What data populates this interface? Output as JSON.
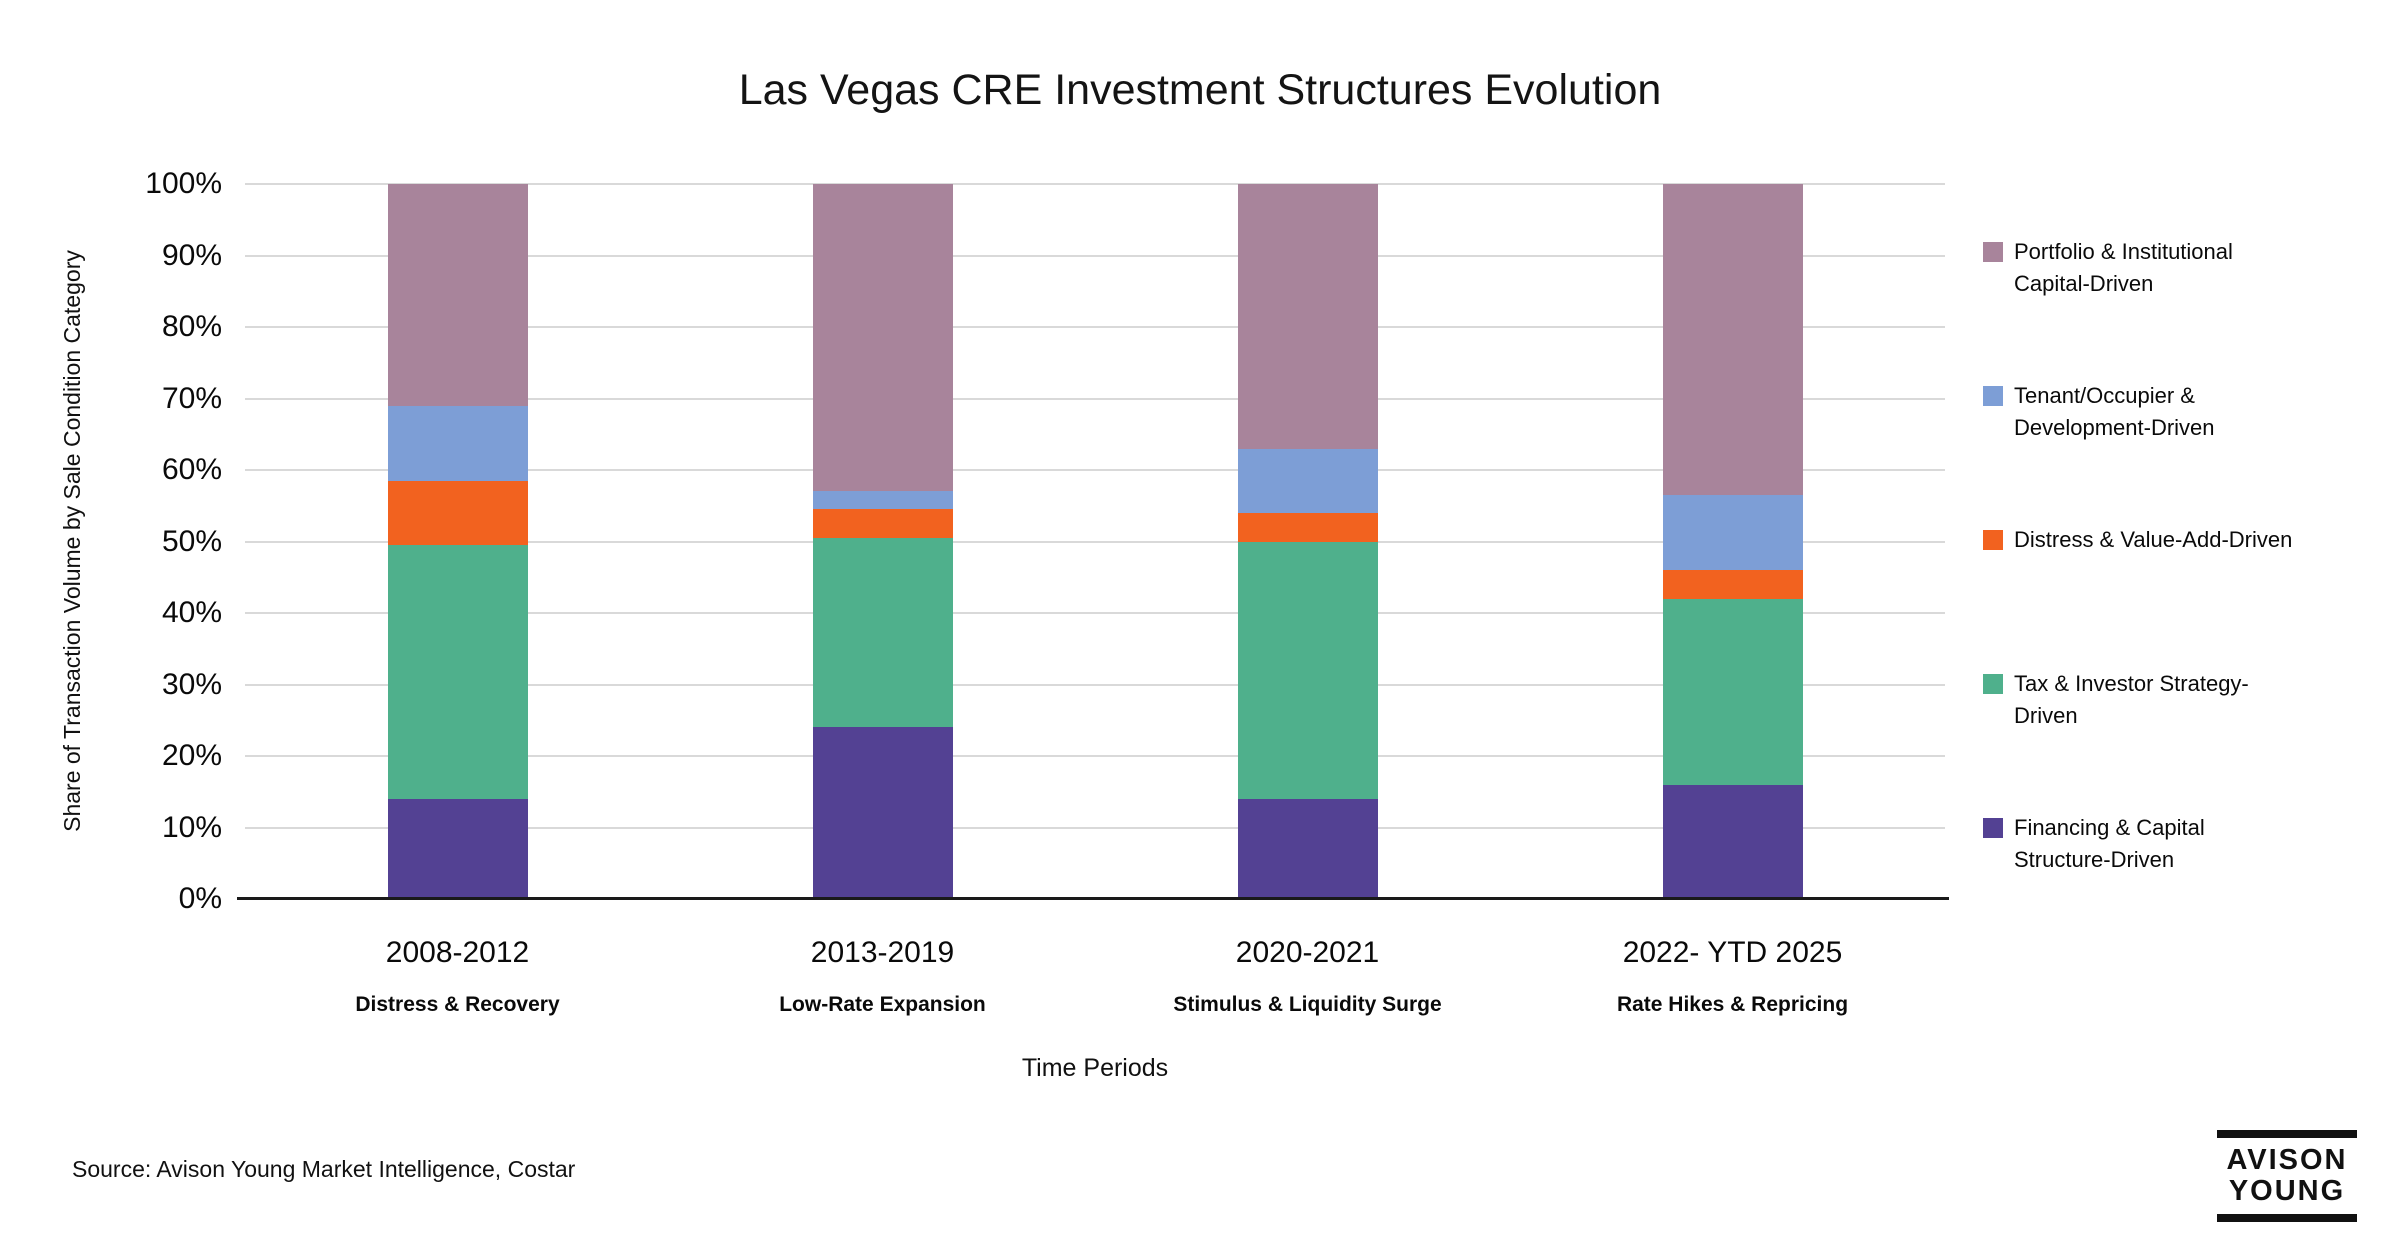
{
  "footer": {
    "source": "Source: Avison Young Market Intelligence, Costar",
    "logo_line1": "AVISON",
    "logo_line2": "YOUNG"
  },
  "chart_data": {
    "type": "bar",
    "stacked": true,
    "title": "Las Vegas CRE Investment Structures Evolution",
    "xlabel": "Time Periods",
    "ylabel": "Share of Transaction Volume by Sale Condition Category",
    "unit": "%",
    "ylim": [
      0,
      100
    ],
    "y_ticks": [
      "0%",
      "10%",
      "20%",
      "30%",
      "40%",
      "50%",
      "60%",
      "70%",
      "80%",
      "90%",
      "100%"
    ],
    "grid": "horizontal",
    "legend_position": "right",
    "stack_order": "series listed bottom to top; legend shown top to bottom in reverse order",
    "categories": [
      {
        "label": "2008-2012",
        "sublabel": "Distress & Recovery"
      },
      {
        "label": "2013-2019",
        "sublabel": "Low-Rate Expansion"
      },
      {
        "label": "2020-2021",
        "sublabel": "Stimulus & Liquidity Surge"
      },
      {
        "label": "2022- YTD 2025",
        "sublabel": "Rate Hikes & Repricing"
      }
    ],
    "series": [
      {
        "name": "Financing & Capital Structure-Driven",
        "legend_lines": [
          "Financing & Capital",
          "Structure-Driven"
        ],
        "color": "#534193",
        "values": [
          14,
          24,
          14,
          16
        ]
      },
      {
        "name": "Tax & Investor Strategy-Driven",
        "legend_lines": [
          "Tax & Investor Strategy-",
          "Driven"
        ],
        "color": "#4FB08C",
        "values": [
          35.5,
          26.5,
          36,
          26
        ]
      },
      {
        "name": "Distress & Value-Add-Driven",
        "legend_lines": [
          "Distress & Value-Add-Driven"
        ],
        "color": "#F2621F",
        "values": [
          9,
          4,
          4,
          4
        ]
      },
      {
        "name": "Tenant/Occupier & Development-Driven",
        "legend_lines": [
          "Tenant/Occupier &",
          "Development-Driven"
        ],
        "color": "#7D9ED6",
        "values": [
          10.5,
          2.5,
          9,
          10.5
        ]
      },
      {
        "name": "Portfolio & Institutional Capital-Driven",
        "legend_lines": [
          "Portfolio & Institutional",
          "Capital-Driven"
        ],
        "color": "#A8849B",
        "values": [
          31,
          43,
          37,
          43.5
        ]
      }
    ]
  }
}
